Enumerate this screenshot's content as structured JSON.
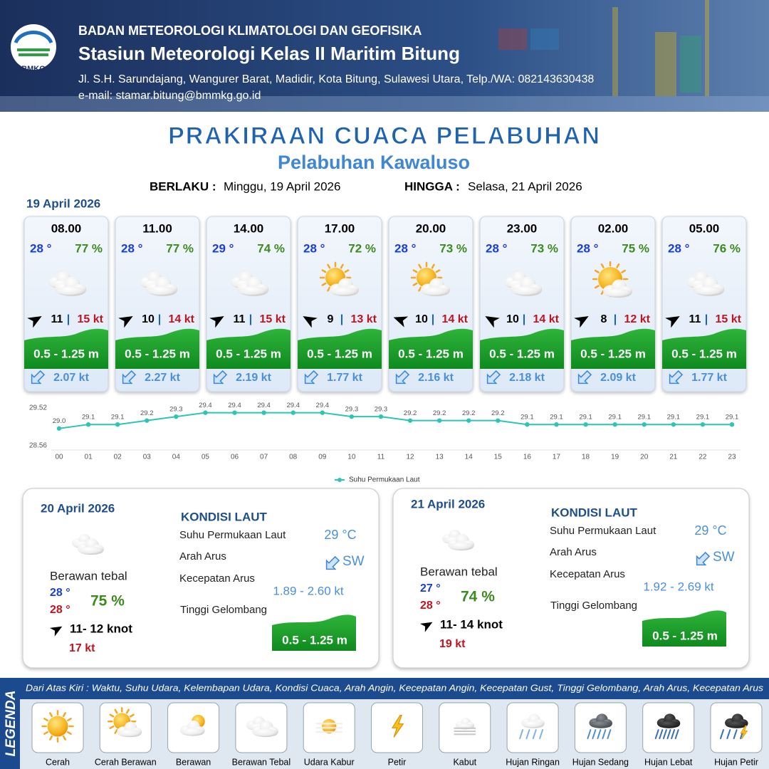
{
  "header": {
    "logo": "BMKG",
    "agency": "BADAN METEOROLOGI KLIMATOLOGI DAN GEOFISIKA",
    "station": "Stasiun Meteorologi Kelas II Maritim Bitung",
    "address": "Jl. S.H. Sarundajang, Wangurer Barat, Madidir, Kota Bitung, Sulawesi Utara, Telp./WA: 082143630438",
    "email": "e-mail: stamar.bitung@bmmkg.go.id"
  },
  "title": "PRAKIRAAN CUACA PELABUHAN",
  "subtitle": "Pelabuhan Kawaluso",
  "validity": {
    "from_label": "BERLAKU :",
    "from": "Minggu, 19 April 2026",
    "to_label": "HINGGA :",
    "to": "Selasa, 21 April 2026"
  },
  "today": {
    "date": "19 April 2026",
    "separator": "|",
    "forecasts": [
      {
        "time": "08.00",
        "temp": "28 °",
        "humidity": "77 %",
        "wind": "11",
        "gust": "15 kt",
        "wave": "0.5 - 1.25 m",
        "current": "2.07 kt"
      },
      {
        "time": "11.00",
        "temp": "28 °",
        "humidity": "77 %",
        "wind": "10",
        "gust": "14 kt",
        "wave": "0.5 - 1.25 m",
        "current": "2.27 kt"
      },
      {
        "time": "14.00",
        "temp": "29 °",
        "humidity": "74 %",
        "wind": "11",
        "gust": "15 kt",
        "wave": "0.5 - 1.25 m",
        "current": "2.19 kt"
      },
      {
        "time": "17.00",
        "temp": "28 °",
        "humidity": "72 %",
        "wind": "9",
        "gust": "13 kt",
        "wave": "0.5 - 1.25 m",
        "current": "1.77 kt"
      },
      {
        "time": "20.00",
        "temp": "28 °",
        "humidity": "73 %",
        "wind": "10",
        "gust": "14 kt",
        "wave": "0.5 - 1.25 m",
        "current": "2.16 kt"
      },
      {
        "time": "23.00",
        "temp": "28 °",
        "humidity": "73 %",
        "wind": "10",
        "gust": "14 kt",
        "wave": "0.5 - 1.25 m",
        "current": "2.18 kt"
      },
      {
        "time": "02.00",
        "temp": "28 °",
        "humidity": "75 %",
        "wind": "8",
        "gust": "12 kt",
        "wave": "0.5 - 1.25 m",
        "current": "2.09 kt"
      },
      {
        "time": "05.00",
        "temp": "28 °",
        "humidity": "76 %",
        "wind": "11",
        "gust": "15 kt",
        "wave": "0.5 - 1.25 m",
        "current": "1.77 kt"
      }
    ]
  },
  "chart_data": {
    "type": "line",
    "categories": [
      "00",
      "01",
      "02",
      "03",
      "04",
      "05",
      "06",
      "07",
      "08",
      "09",
      "10",
      "11",
      "12",
      "13",
      "14",
      "15",
      "16",
      "17",
      "18",
      "19",
      "20",
      "21",
      "22",
      "23"
    ],
    "series": [
      {
        "name": "Suhu Permukaan Laut",
        "color": "#2ec4b6",
        "values": [
          29.0,
          29.1,
          29.1,
          29.2,
          29.3,
          29.4,
          29.4,
          29.4,
          29.4,
          29.4,
          29.3,
          29.3,
          29.2,
          29.2,
          29.2,
          29.2,
          29.1,
          29.1,
          29.1,
          29.1,
          29.1,
          29.1,
          29.1,
          29.1
        ],
        "value_labels": [
          "29.0",
          "29.1",
          "29.1",
          "29.2",
          "29.3",
          "29.4",
          "29.4",
          "29.4",
          "29.4",
          "29.4",
          "29.3",
          "29.3",
          "29.2",
          "29.2",
          "29.2",
          "29.2",
          "29.1",
          "29.1",
          "29.1",
          "29.1",
          "29.1",
          "29.1",
          "29.1",
          "29.1"
        ]
      }
    ],
    "ylim": [
      28.56,
      29.52
    ],
    "yticks": [
      28.56,
      29.52
    ],
    "grid": false,
    "legend": "bottom"
  },
  "days": [
    {
      "date": "20 April 2026",
      "condition": "Berawan tebal",
      "temp_min": "28 °",
      "temp_max": "28 °",
      "humidity": "75 %",
      "wind": "11- 12 knot",
      "gust": "17 kt",
      "sea_title": "KONDISI LAUT",
      "sst_label": "Suhu Permukaan Laut",
      "sst": "29 °C",
      "current_dir_label": "Arah Arus",
      "current_dir": "SW",
      "current_speed_label": "Kecepatan Arus",
      "current_speed": "1.89 - 2.60 kt",
      "wave_label": "Tinggi Gelombang",
      "wave": "0.5 - 1.25 m"
    },
    {
      "date": "21 April 2026",
      "condition": "Berawan tebal",
      "temp_min": "27 °",
      "temp_max": "28 °",
      "humidity": "74 %",
      "wind": "11- 14 knot",
      "gust": "19 kt",
      "sea_title": "KONDISI LAUT",
      "sst_label": "Suhu Permukaan Laut",
      "sst": "29 °C",
      "current_dir_label": "Arah Arus",
      "current_dir": "SW",
      "current_speed_label": "Kecepatan Arus",
      "current_speed": "1.92 - 2.69 kt",
      "wave_label": "Tinggi Gelombang",
      "wave": "0.5 - 1.25 m"
    }
  ],
  "legend": {
    "title": "LEGENDA",
    "description": "Dari Atas Kiri : Waktu, Suhu Udara, Kelembapan Udara, Kondisi Cuaca, Arah Angin, Kecepatan Angin, Kecepatan Gust, Tinggi Gelombang, Arah Arus, Kecepatan Arus",
    "items": [
      "Cerah",
      "Cerah Berawan",
      "Berawan",
      "Berawan Tebal",
      "Udara Kabur",
      "Petir",
      "Kabut",
      "Hujan Ringan",
      "Hujan Sedang",
      "Hujan Lebat",
      "Hujan Petir"
    ]
  }
}
